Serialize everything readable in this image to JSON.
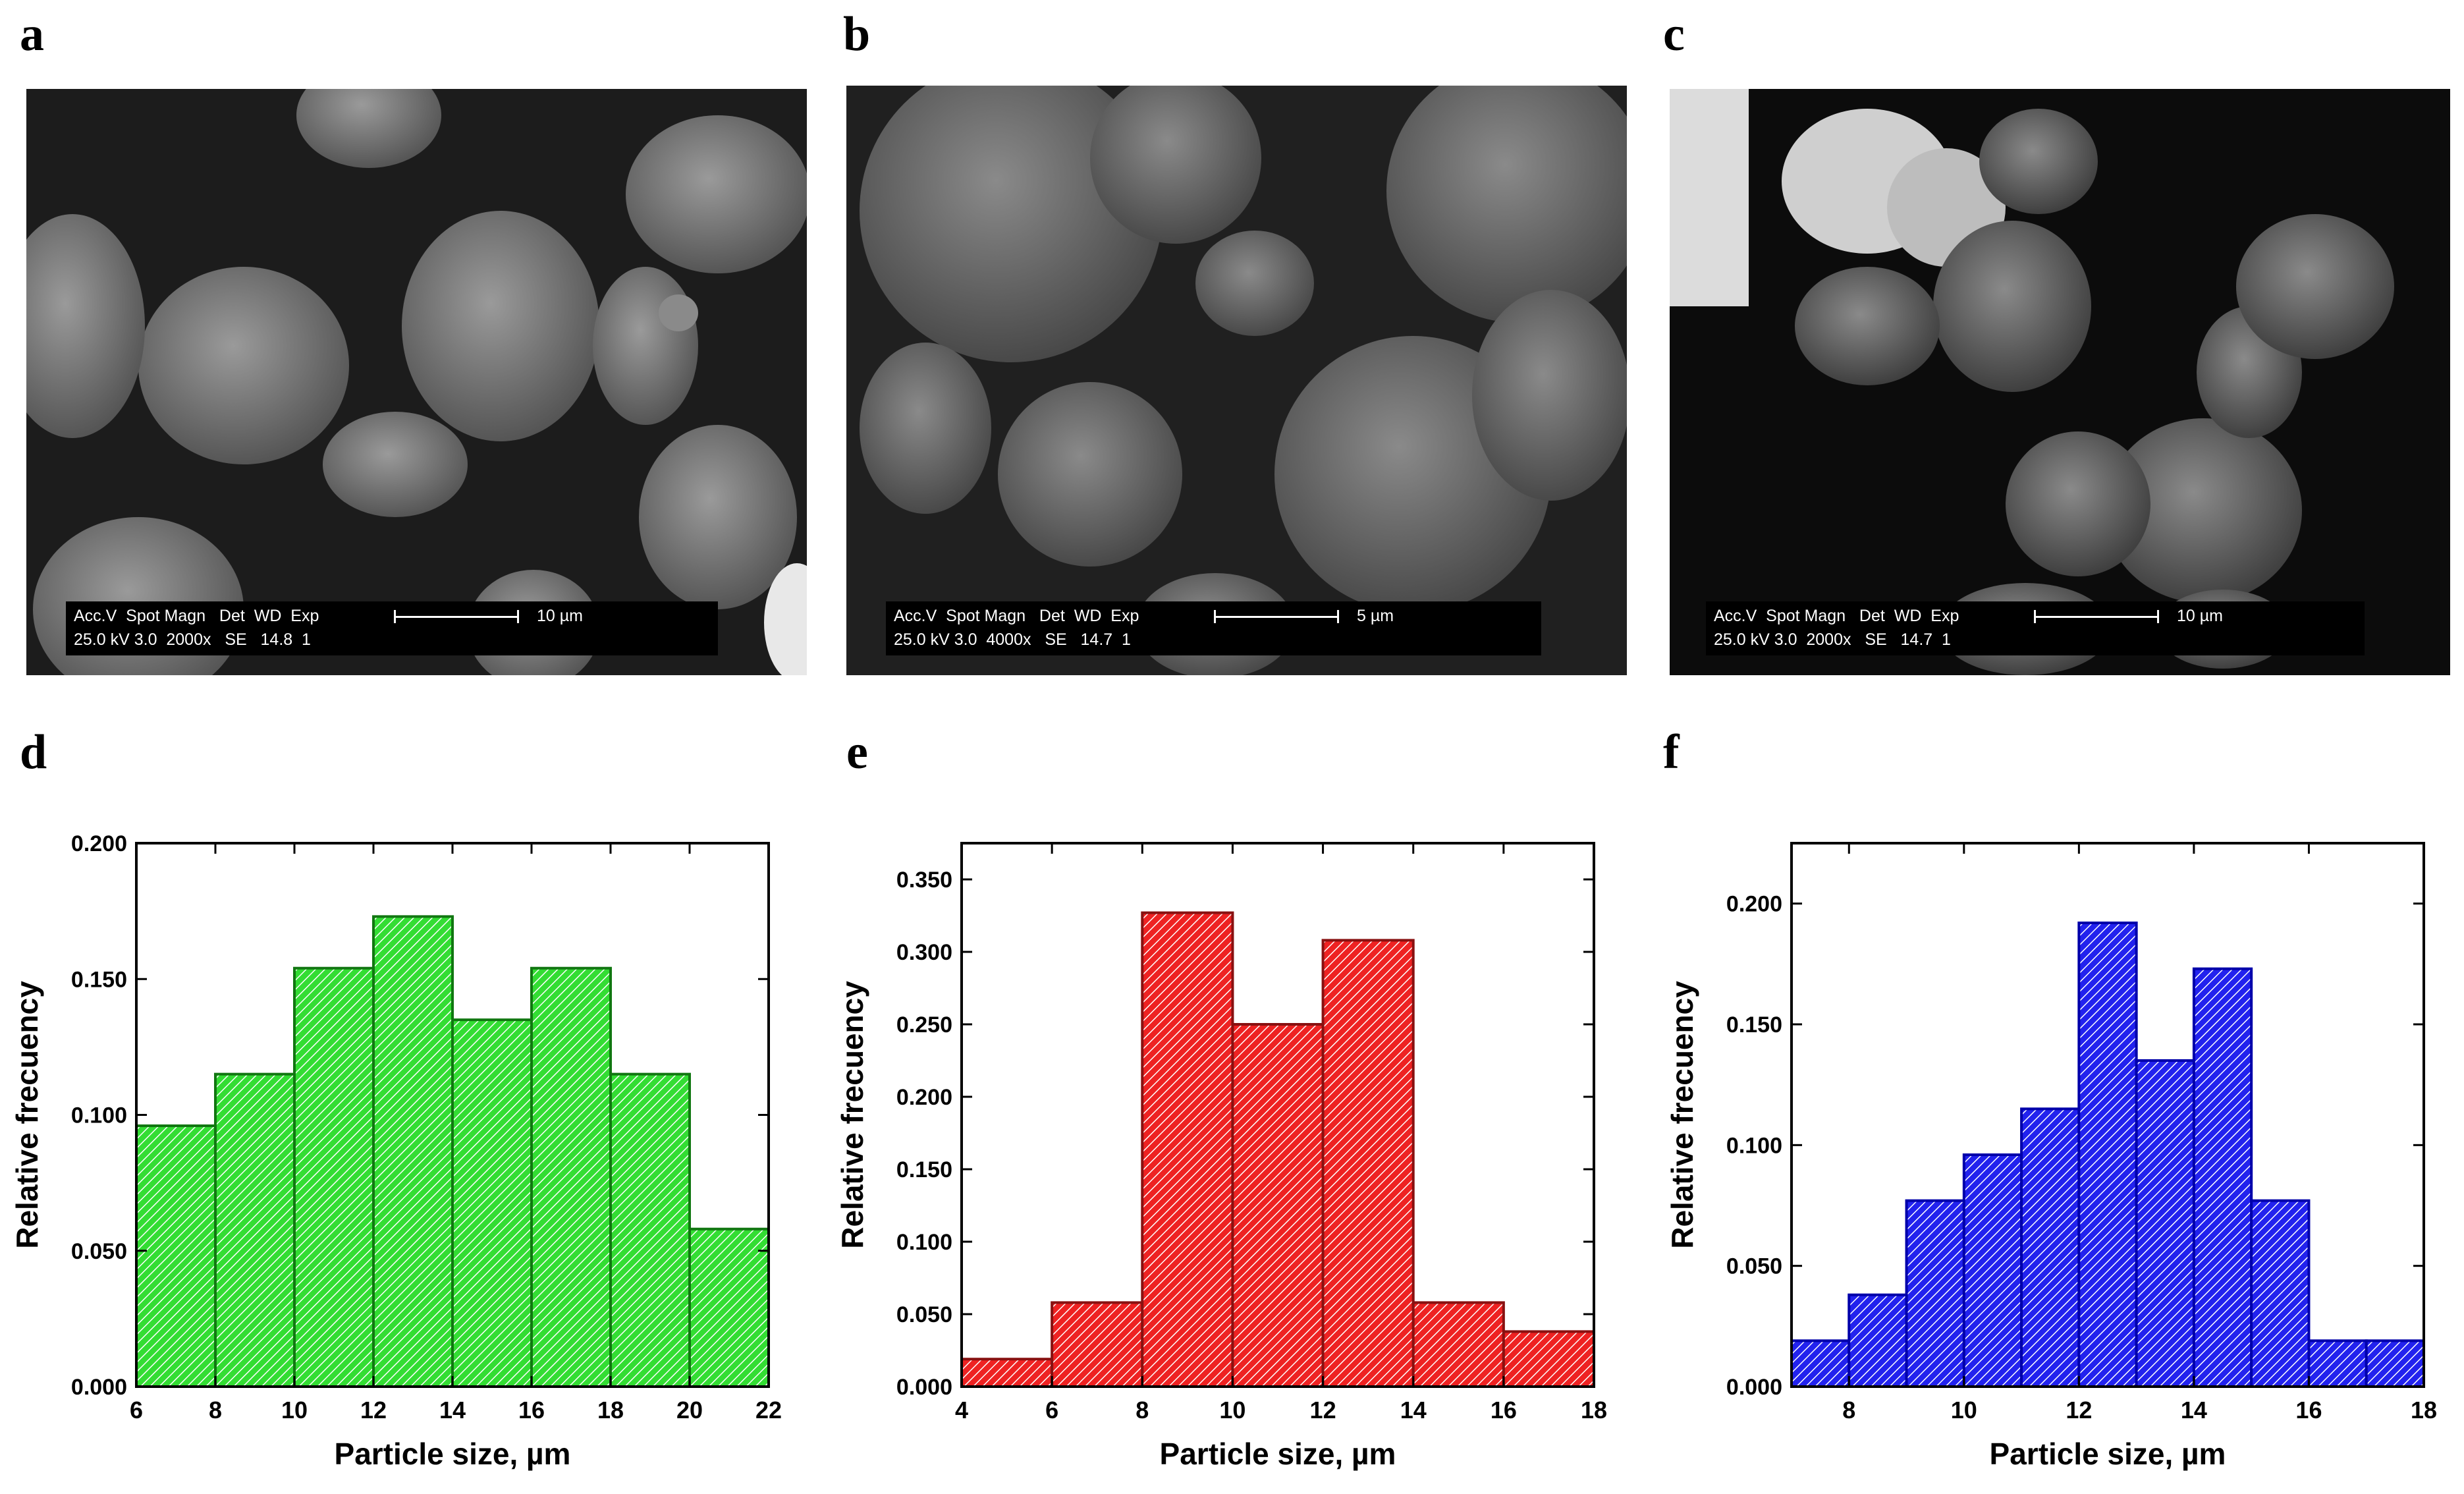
{
  "panels": [
    "a",
    "b",
    "c",
    "d",
    "e",
    "f"
  ],
  "sem": [
    {
      "letter": "a",
      "row1": "Acc.V  Spot Magn   Det  WD  Exp",
      "row2": "25.0 kV 3.0  2000x   SE   14.8  1",
      "scale": "10 µm"
    },
    {
      "letter": "b",
      "row1": "Acc.V  Spot Magn   Det  WD  Exp",
      "row2": "25.0 kV 3.0  4000x   SE   14.7  1",
      "scale": "5 µm"
    },
    {
      "letter": "c",
      "row1": "Acc.V  Spot Magn   Det  WD  Exp",
      "row2": "25.0 kV 3.0  2000x   SE   14.7  1",
      "scale": "10 µm"
    }
  ],
  "chart_data": [
    {
      "type": "bar",
      "panel": "d",
      "xlabel": "Particle size, µm",
      "ylabel": "Relative frecuency",
      "xlim": [
        6,
        22
      ],
      "ylim": [
        0,
        0.2
      ],
      "xticks": [
        "6",
        "8",
        "10",
        "12",
        "14",
        "16",
        "18",
        "20",
        "22"
      ],
      "yticks": [
        "0.000",
        "0.050",
        "0.100",
        "0.150",
        "0.200"
      ],
      "bin_edges": [
        6,
        8,
        10,
        12,
        14,
        16,
        18,
        20,
        22
      ],
      "values": [
        0.096,
        0.115,
        0.154,
        0.173,
        0.135,
        0.154,
        0.115,
        0.058
      ],
      "fill": "#33dd33",
      "stroke": "#117711"
    },
    {
      "type": "bar",
      "panel": "e",
      "xlabel": "Particle size, µm",
      "ylabel": "Relative frecuency",
      "xlim": [
        4,
        18
      ],
      "ylim": [
        0,
        0.375
      ],
      "xticks": [
        "4",
        "6",
        "8",
        "10",
        "12",
        "14",
        "16",
        "18"
      ],
      "yticks": [
        "0.000",
        "0.050",
        "0.100",
        "0.150",
        "0.200",
        "0.250",
        "0.300",
        "0.350"
      ],
      "bin_edges": [
        4,
        6,
        8,
        10,
        12,
        14,
        16,
        18
      ],
      "values": [
        0.019,
        0.058,
        0.327,
        0.25,
        0.308,
        0.058,
        0.038
      ],
      "fill": "#ee2222",
      "stroke": "#881111"
    },
    {
      "type": "bar",
      "panel": "f",
      "xlabel": "Particle size, µm",
      "ylabel": "Relative frecuency",
      "xlim": [
        7,
        18
      ],
      "ylim": [
        0,
        0.225
      ],
      "xticks": [
        "8",
        "10",
        "12",
        "14",
        "16",
        "18"
      ],
      "yticks": [
        "0.000",
        "0.050",
        "0.100",
        "0.150",
        "0.200"
      ],
      "bin_edges": [
        7,
        8,
        9,
        10,
        11,
        12,
        13,
        14,
        15,
        16,
        17,
        18
      ],
      "values": [
        0.019,
        0.038,
        0.077,
        0.096,
        0.115,
        0.192,
        0.135,
        0.173,
        0.077,
        0.019,
        0.019
      ],
      "fill": "#2222ee",
      "stroke": "#0000aa"
    }
  ]
}
